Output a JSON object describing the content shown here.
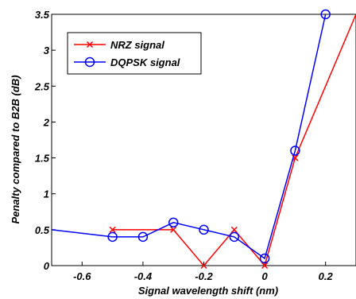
{
  "chart_data": {
    "type": "line",
    "title": "",
    "xlabel": "Signal wavelength shift (nm)",
    "ylabel": "Penalty compared to B2B (dB)",
    "xlim": [
      -0.7,
      0.3
    ],
    "ylim": [
      0,
      3.5
    ],
    "xticks": [
      "-0.6",
      "-0.4",
      "-0.2",
      "0",
      "0.2"
    ],
    "xtick_values": [
      -0.6,
      -0.4,
      -0.2,
      0,
      0.2
    ],
    "yticks": [
      "0",
      "0.5",
      "1",
      "1.5",
      "2",
      "2.5",
      "3",
      "3.5"
    ],
    "ytick_values": [
      0,
      0.5,
      1,
      1.5,
      2,
      2.5,
      3,
      3.5
    ],
    "grid": false,
    "legend_position": "top-left",
    "series": [
      {
        "name": "NRZ signal",
        "color": "#ff0000",
        "marker": "x",
        "x": [
          -0.5,
          -0.3,
          -0.2,
          -0.1,
          0,
          0.1,
          0.3
        ],
        "y": [
          0.5,
          0.5,
          0.0,
          0.5,
          0.0,
          1.5,
          3.5
        ],
        "marked": [
          true,
          true,
          true,
          true,
          true,
          true,
          false
        ]
      },
      {
        "name": "DQPSK signal",
        "color": "#0000ff",
        "marker": "o",
        "x": [
          -0.7,
          -0.5,
          -0.4,
          -0.3,
          -0.2,
          -0.1,
          0,
          0.1,
          0.2
        ],
        "y": [
          0.5,
          0.4,
          0.4,
          0.6,
          0.5,
          0.4,
          0.1,
          1.6,
          3.5
        ],
        "marked": [
          false,
          true,
          true,
          true,
          true,
          true,
          true,
          true,
          true
        ]
      }
    ]
  }
}
